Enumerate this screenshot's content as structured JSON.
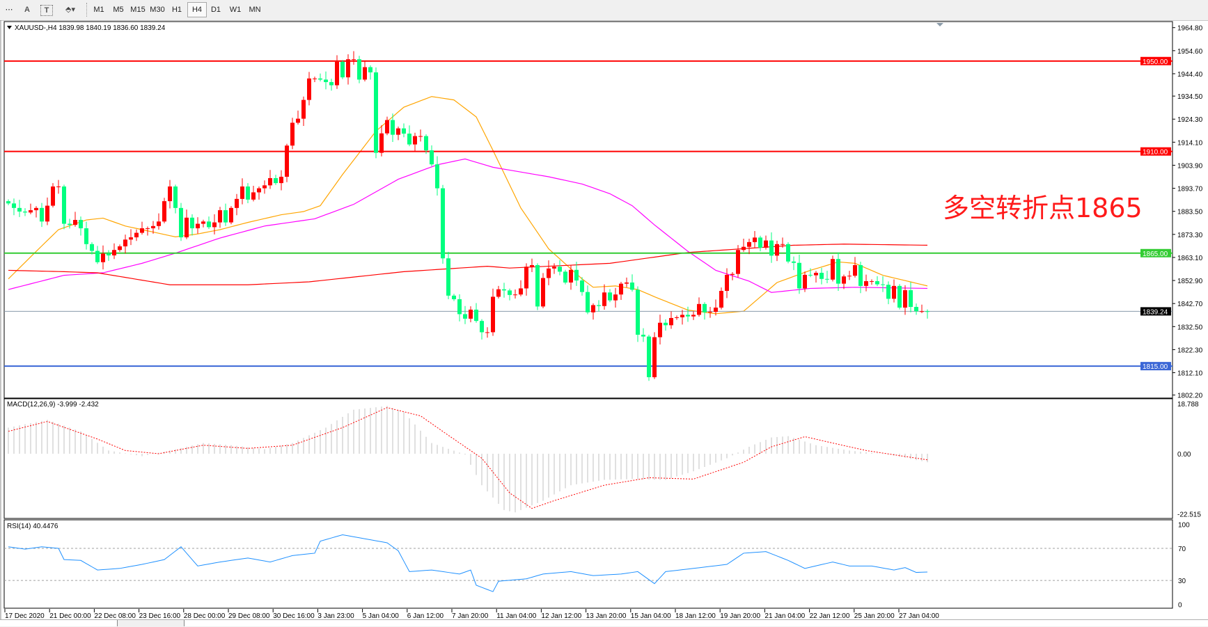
{
  "toolbar": {
    "tools": [
      {
        "name": "period-separator-tool",
        "glyph": "⋯"
      },
      {
        "name": "text-tool",
        "glyph": "A"
      },
      {
        "name": "text-label-tool",
        "glyph": "T"
      },
      {
        "name": "arrows-tool",
        "glyph": "⬘▾"
      }
    ],
    "timeframes": [
      "M1",
      "M5",
      "M15",
      "M30",
      "H1",
      "H4",
      "D1",
      "W1",
      "MN"
    ],
    "active_timeframe": "H4"
  },
  "main": {
    "header": "XAUUSD-,H4  1839.98 1840.19 1836.60 1839.24",
    "price_ticks": [
      "1964.80",
      "1954.60",
      "1944.40",
      "1934.50",
      "1924.30",
      "1914.10",
      "1903.90",
      "1893.70",
      "1883.50",
      "1873.30",
      "1863.10",
      "1852.90",
      "1842.70",
      "1832.50",
      "1822.30",
      "1812.10",
      "1802.20"
    ],
    "price_range": [
      1802.2,
      1964.8
    ],
    "levels": [
      {
        "price": 1950.0,
        "label": "1950.00",
        "color": "#ff0000"
      },
      {
        "price": 1910.0,
        "label": "1910.00",
        "color": "#ff0000"
      },
      {
        "price": 1865.0,
        "label": "1865.00",
        "color": "#33cc33"
      },
      {
        "price": 1815.0,
        "label": "1815.00",
        "color": "#3a66d6"
      }
    ],
    "current_price": {
      "price": 1839.24,
      "label": "1839.24",
      "color": "#000000"
    },
    "annotation": "多空转折点1865",
    "up_color": "#ff0000",
    "down_color": "#00ff7f",
    "closes": [
      1887,
      1885,
      1883.4,
      1883,
      1884,
      1885,
      1879,
      1886,
      1894.5,
      1894.5,
      1878,
      1877.5,
      1879.7,
      1876,
      1869,
      1866,
      1861,
      1864.8,
      1864,
      1866.4,
      1868,
      1871,
      1872,
      1874,
      1876,
      1876,
      1877,
      1879,
      1888,
      1894.5,
      1885,
      1872,
      1880.7,
      1876,
      1878,
      1879,
      1876.5,
      1878.6,
      1884,
      1878.6,
      1885,
      1889,
      1894.5,
      1888.7,
      1891.9,
      1893.7,
      1895,
      1898.2,
      1896,
      1898.8,
      1912.6,
      1922.7,
      1924.5,
      1932.8,
      1942.3,
      1942.3,
      1941.8,
      1940.7,
      1939.3,
      1949.7,
      1942.8,
      1950.8,
      1950.8,
      1941.8,
      1947.3,
      1945,
      1909.4,
      1918,
      1923.9,
      1917.4,
      1920.2,
      1917.9,
      1913.1,
      1916.8,
      1916.8,
      1910.5,
      1904.3,
      1893.7,
      1862.7,
      1846.2,
      1844.6,
      1838,
      1836,
      1840,
      1835,
      1830,
      1830,
      1845.7,
      1849,
      1848.5,
      1846.5,
      1846.7,
      1849.4,
      1859,
      1859.7,
      1841.4,
      1854,
      1858.2,
      1859,
      1856.8,
      1852,
      1857.6,
      1852.9,
      1847.8,
      1838.8,
      1842,
      1841.6,
      1847.6,
      1844.1,
      1846.7,
      1851.5,
      1852,
      1848.8,
      1828.9,
      1828.1,
      1810.1,
      1827.8,
      1834.2,
      1833.1,
      1836.3,
      1836.6,
      1837.7,
      1837,
      1837.7,
      1842.5,
      1838.8,
      1839,
      1840.9,
      1848.3,
      1855.4,
      1855.8,
      1866.4,
      1867.8,
      1869.9,
      1871.9,
      1867.4,
      1870.6,
      1863.9,
      1869,
      1869,
      1861.3,
      1860.7,
      1849.4,
      1855.4,
      1855.2,
      1856.3,
      1853.6,
      1853.3,
      1862.4,
      1851.5,
      1854.7,
      1855,
      1859.7,
      1850.5,
      1852.6,
      1852.6,
      1851.2,
      1851,
      1844.8,
      1850.5,
      1840.9,
      1848.6,
      1841.2,
      1839.3,
      1839.3,
      1839.24
    ],
    "moving_averages": [
      {
        "color": "#ffa500",
        "points": [
          [
            0,
            1853.6
          ],
          [
            5,
            1865.8
          ],
          [
            9,
            1875.4
          ],
          [
            14,
            1879.7
          ],
          [
            17,
            1880.5
          ],
          [
            21,
            1877
          ],
          [
            27,
            1873.8
          ],
          [
            30,
            1872.2
          ],
          [
            34,
            1873.5
          ],
          [
            38,
            1875.4
          ],
          [
            43,
            1878.6
          ],
          [
            49,
            1882
          ],
          [
            53,
            1883.4
          ],
          [
            56,
            1886
          ],
          [
            60,
            1899.8
          ],
          [
            66,
            1919
          ],
          [
            71,
            1929.6
          ],
          [
            76,
            1934.3
          ],
          [
            80,
            1932.8
          ],
          [
            84,
            1925.3
          ],
          [
            87,
            1910.5
          ],
          [
            92,
            1885
          ],
          [
            97,
            1866.9
          ],
          [
            103,
            1853.6
          ],
          [
            105,
            1849.9
          ],
          [
            109,
            1850.5
          ],
          [
            113,
            1848.9
          ],
          [
            116,
            1845.7
          ],
          [
            122,
            1839.8
          ],
          [
            127,
            1838.2
          ],
          [
            132,
            1839.3
          ],
          [
            134,
            1843.5
          ],
          [
            138,
            1852
          ],
          [
            144,
            1857.4
          ],
          [
            149,
            1861.1
          ],
          [
            152,
            1860.5
          ],
          [
            157,
            1855.2
          ],
          [
            165,
            1850.5
          ]
        ]
      },
      {
        "color": "#ff00ff",
        "points": [
          [
            0,
            1848.9
          ],
          [
            10,
            1855.2
          ],
          [
            17,
            1856.3
          ],
          [
            24,
            1860.5
          ],
          [
            30,
            1865
          ],
          [
            38,
            1871.7
          ],
          [
            46,
            1877
          ],
          [
            55,
            1880.2
          ],
          [
            62,
            1886.6
          ],
          [
            70,
            1897.7
          ],
          [
            77,
            1904.1
          ],
          [
            82,
            1906.7
          ],
          [
            87,
            1903
          ],
          [
            97,
            1898.8
          ],
          [
            103,
            1895.6
          ],
          [
            108,
            1891.3
          ],
          [
            112,
            1886
          ],
          [
            116,
            1877.5
          ],
          [
            122,
            1865.8
          ],
          [
            127,
            1857.4
          ],
          [
            133,
            1852.6
          ],
          [
            137,
            1847.6
          ],
          [
            144,
            1849.4
          ],
          [
            152,
            1849.9
          ],
          [
            165,
            1849.4
          ]
        ]
      },
      {
        "color": "#ff0000",
        "points": [
          [
            0,
            1857.4
          ],
          [
            10,
            1856.8
          ],
          [
            16,
            1856.3
          ],
          [
            29,
            1851
          ],
          [
            43,
            1851
          ],
          [
            54,
            1852.3
          ],
          [
            71,
            1856.8
          ],
          [
            86,
            1859.2
          ],
          [
            90,
            1858.4
          ],
          [
            108,
            1860.5
          ],
          [
            122,
            1865.3
          ],
          [
            141,
            1868.5
          ],
          [
            150,
            1869
          ],
          [
            165,
            1868.5
          ]
        ]
      }
    ]
  },
  "macd": {
    "label": "MACD(12,26,9) -3.999 -2.432",
    "ticks": [
      "18.788",
      "0.00",
      "-22.515"
    ],
    "tick_values": [
      18.788,
      0,
      -22.515
    ],
    "histogram_points": [
      [
        0,
        9.8
      ],
      [
        7,
        12.7
      ],
      [
        13,
        8.4
      ],
      [
        18,
        1.2
      ],
      [
        24,
        -0.9
      ],
      [
        29,
        1.2
      ],
      [
        35,
        4
      ],
      [
        40,
        3.2
      ],
      [
        46,
        1.7
      ],
      [
        51,
        4
      ],
      [
        57,
        9.8
      ],
      [
        62,
        16.5
      ],
      [
        68,
        17.9
      ],
      [
        71,
        15.6
      ],
      [
        76,
        4
      ],
      [
        82,
        -0.3
      ],
      [
        85,
        -11.8
      ],
      [
        89,
        -21.1
      ],
      [
        91,
        -22
      ],
      [
        96,
        -17.6
      ],
      [
        101,
        -11.8
      ],
      [
        107,
        -9.8
      ],
      [
        112,
        -9.5
      ],
      [
        118,
        -9.8
      ],
      [
        123,
        -6.6
      ],
      [
        129,
        -1.7
      ],
      [
        133,
        2.6
      ],
      [
        137,
        6.1
      ],
      [
        140,
        6.6
      ],
      [
        145,
        3.2
      ],
      [
        151,
        1.2
      ],
      [
        158,
        -0.3
      ],
      [
        165,
        -3.2
      ]
    ],
    "signal_points": [
      [
        0,
        8.4
      ],
      [
        7,
        12.1
      ],
      [
        16,
        5.5
      ],
      [
        21,
        1.2
      ],
      [
        27,
        0
      ],
      [
        35,
        3.2
      ],
      [
        43,
        2
      ],
      [
        51,
        3.2
      ],
      [
        60,
        9.8
      ],
      [
        68,
        17.3
      ],
      [
        74,
        14.2
      ],
      [
        79,
        6.9
      ],
      [
        85,
        -1.7
      ],
      [
        90,
        -14.7
      ],
      [
        94,
        -20.5
      ],
      [
        98,
        -17.6
      ],
      [
        107,
        -11.8
      ],
      [
        115,
        -9
      ],
      [
        123,
        -9.5
      ],
      [
        132,
        -3.2
      ],
      [
        137,
        2.6
      ],
      [
        143,
        6.4
      ],
      [
        148,
        4
      ],
      [
        154,
        1.2
      ],
      [
        165,
        -2.3
      ]
    ],
    "histogram_color": "#c0c0c0",
    "signal_color": "#ff0000"
  },
  "rsi": {
    "label": "RSI(14) 40.4476",
    "ticks": [
      "100",
      "70",
      "30",
      "0"
    ],
    "tick_values": [
      100,
      70,
      30,
      0
    ],
    "points": [
      [
        0,
        72
      ],
      [
        3,
        69
      ],
      [
        6,
        72
      ],
      [
        9,
        70
      ],
      [
        10,
        56
      ],
      [
        13,
        55
      ],
      [
        16,
        43
      ],
      [
        20,
        45
      ],
      [
        24,
        50
      ],
      [
        28,
        56
      ],
      [
        31,
        72
      ],
      [
        34,
        48
      ],
      [
        38,
        53
      ],
      [
        43,
        58
      ],
      [
        47,
        53
      ],
      [
        51,
        61
      ],
      [
        55,
        64
      ],
      [
        56,
        79
      ],
      [
        60,
        87
      ],
      [
        64,
        82
      ],
      [
        68,
        77
      ],
      [
        70,
        67
      ],
      [
        72,
        41
      ],
      [
        76,
        43
      ],
      [
        81,
        38
      ],
      [
        83,
        43
      ],
      [
        84,
        24
      ],
      [
        87,
        16
      ],
      [
        88,
        29
      ],
      [
        93,
        32
      ],
      [
        96,
        38
      ],
      [
        101,
        41
      ],
      [
        105,
        36
      ],
      [
        110,
        38
      ],
      [
        113,
        41
      ],
      [
        116,
        26
      ],
      [
        118,
        41
      ],
      [
        123,
        45
      ],
      [
        129,
        50
      ],
      [
        132,
        64
      ],
      [
        136,
        66
      ],
      [
        140,
        55
      ],
      [
        143,
        45
      ],
      [
        148,
        53
      ],
      [
        151,
        48
      ],
      [
        155,
        48
      ],
      [
        159,
        43
      ],
      [
        161,
        46
      ],
      [
        163,
        40
      ],
      [
        165,
        40.4476
      ]
    ],
    "color": "#1e90ff"
  },
  "time_axis": [
    "17 Dec 2020",
    "21 Dec 00:00",
    "22 Dec 08:00",
    "23 Dec 16:00",
    "28 Dec 00:00",
    "29 Dec 08:00",
    "30 Dec 16:00",
    "3 Jan 23:00",
    "5 Jan 04:00",
    "6 Jan 12:00",
    "7 Jan 20:00",
    "11 Jan 04:00",
    "12 Jan 12:00",
    "13 Jan 20:00",
    "15 Jan 04:00",
    "18 Jan 12:00",
    "19 Jan 20:00",
    "21 Jan 04:00",
    "22 Jan 12:00",
    "25 Jan 20:00",
    "27 Jan 04:00"
  ]
}
